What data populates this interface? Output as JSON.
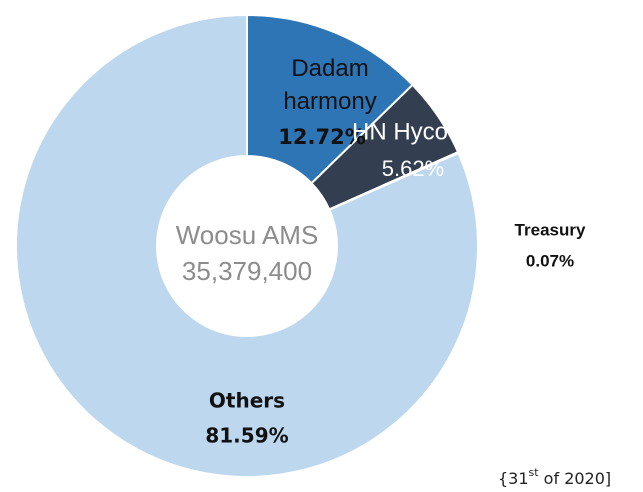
{
  "chart_data": {
    "type": "donut",
    "categories": [
      "Dadam harmony",
      "HN Hyco",
      "Treasury",
      "Others"
    ],
    "values": [
      12.72,
      5.62,
      0.07,
      81.59
    ],
    "value_labels": [
      "12.72%",
      "5.62%",
      "0.07%",
      "81.59%"
    ],
    "colors": [
      "#2e75b6",
      "#333f50",
      "#1f3864",
      "#bdd7ee"
    ],
    "center_label": [
      "Woosu AMS",
      "35,379,400"
    ],
    "footnote": {
      "prefix": "{31",
      "sup": "st",
      "suffix": " of 2020]"
    }
  }
}
